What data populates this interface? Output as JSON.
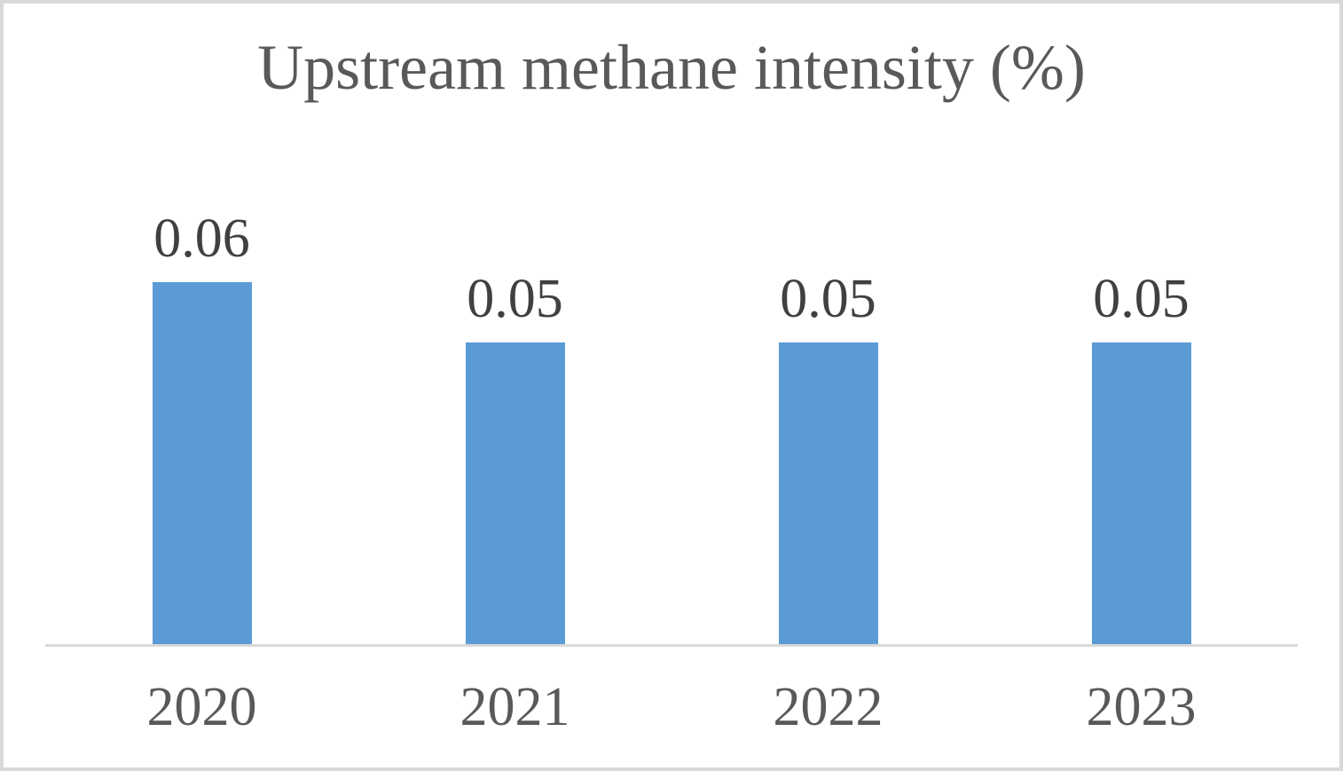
{
  "chart_data": {
    "type": "bar",
    "title": "Upstream methane intensity (%)",
    "categories": [
      "2020",
      "2021",
      "2022",
      "2023"
    ],
    "values": [
      0.06,
      0.05,
      0.05,
      0.05
    ],
    "value_labels": [
      "0.06",
      "0.05",
      "0.05",
      "0.05"
    ],
    "xlabel": "",
    "ylabel": "",
    "ylim": [
      0,
      0.065
    ],
    "grid": false,
    "legend": "none",
    "data_labels": "above-bars",
    "colors": {
      "bar": "#5B9BD5",
      "axis_line": "#D9D9D9",
      "frame_border": "#D9D9D9",
      "title_text": "#595959",
      "data_label_text": "#404040",
      "tick_label_text": "#595959",
      "background": "#FFFFFF"
    }
  }
}
